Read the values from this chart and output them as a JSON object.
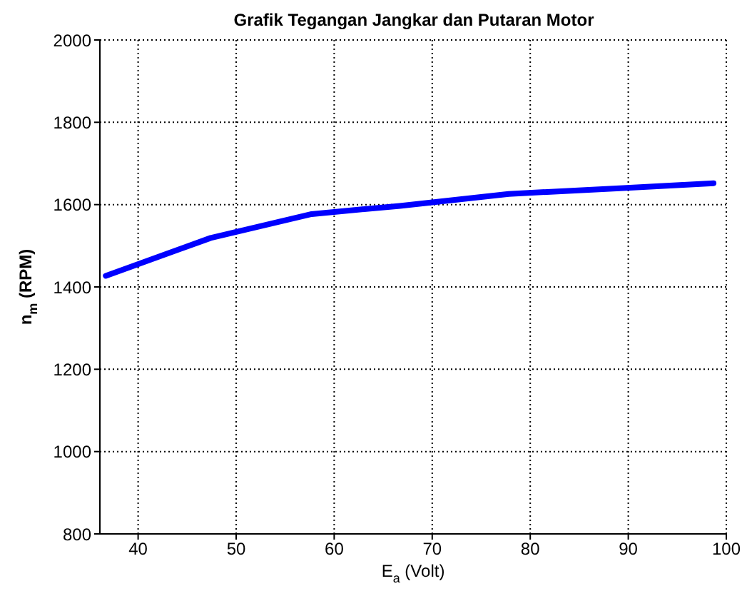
{
  "chart_data": {
    "type": "line",
    "title": "Grafik Tegangan Jangkar dan Putaran Motor",
    "xlabel": "E$_{a}$ (Volt)",
    "ylabel": "n$_{m}$ (RPM)",
    "x": [
      36.7,
      47.4,
      57.7,
      66.7,
      77.8,
      89.5,
      98.7
    ],
    "series": [
      {
        "color": "#0000ff",
        "values": [
          1427,
          1519,
          1577,
          1597,
          1626,
          1640,
          1652
        ]
      }
    ],
    "xlim": [
      36.1,
      100
    ],
    "xticks": [
      40,
      50,
      60,
      70,
      80,
      90,
      100
    ],
    "ylim": [
      800,
      2000
    ],
    "yticks": [
      800,
      1000,
      1200,
      1400,
      1600,
      1800,
      2000
    ],
    "grid": true,
    "marker": "none",
    "line_style": "solid"
  }
}
